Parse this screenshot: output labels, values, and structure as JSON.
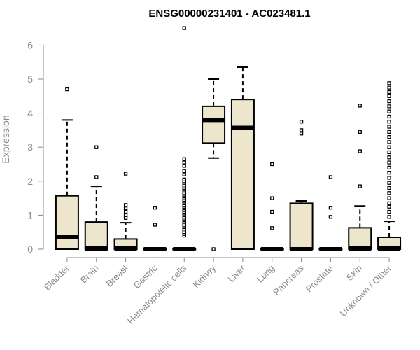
{
  "chart_data": {
    "type": "boxplot",
    "title": "ENSG00000231401 - AC023481.1",
    "ylabel": "Expression",
    "xlabel": "",
    "ylim": [
      0,
      6.5
    ],
    "yticks": [
      0,
      1,
      2,
      3,
      4,
      5,
      6
    ],
    "box_color": "#ede6cc",
    "grid": false,
    "categories": [
      "Bladder",
      "Brain",
      "Breast",
      "Gastric",
      "Hematopoietic cells",
      "Kidney",
      "Liver",
      "Lung",
      "Pancreas",
      "Prostate",
      "Skin",
      "Unknown / Other"
    ],
    "boxes": [
      {
        "q1": 0,
        "median": 0.37,
        "q3": 1.57,
        "whisker_low": 0,
        "whisker_high": 3.8,
        "outliers": [
          4.7
        ]
      },
      {
        "q1": 0,
        "median": 0.02,
        "q3": 0.8,
        "whisker_low": 0,
        "whisker_high": 1.85,
        "outliers": [
          2.12,
          3.0
        ]
      },
      {
        "q1": 0,
        "median": 0.02,
        "q3": 0.3,
        "whisker_low": 0,
        "whisker_high": 0.78,
        "outliers": [
          0.92,
          1.0,
          1.1,
          1.2,
          1.3,
          2.22
        ]
      },
      {
        "q1": 0,
        "median": 0,
        "q3": 0,
        "whisker_low": 0,
        "whisker_high": 0,
        "outliers": [
          0.72,
          1.22
        ]
      },
      {
        "q1": 0,
        "median": 0,
        "q3": 0,
        "whisker_low": 0,
        "whisker_high": 0,
        "outliers": [
          0.4,
          0.45,
          0.5,
          0.55,
          0.6,
          0.65,
          0.7,
          0.75,
          0.8,
          0.85,
          0.9,
          0.95,
          1.0,
          1.05,
          1.1,
          1.15,
          1.2,
          1.25,
          1.3,
          1.35,
          1.4,
          1.45,
          1.5,
          1.55,
          1.6,
          1.65,
          1.7,
          1.75,
          1.8,
          1.85,
          1.9,
          1.95,
          2.0,
          2.05,
          2.2,
          2.3,
          2.45,
          2.55,
          2.65,
          6.5
        ]
      },
      {
        "q1": 3.12,
        "median": 3.8,
        "q3": 4.2,
        "whisker_low": 2.68,
        "whisker_high": 5.0,
        "outliers": [
          0
        ]
      },
      {
        "q1": 0,
        "median": 3.57,
        "q3": 4.4,
        "whisker_low": 0,
        "whisker_high": 5.35,
        "outliers": []
      },
      {
        "q1": 0,
        "median": 0,
        "q3": 0,
        "whisker_low": 0,
        "whisker_high": 0,
        "outliers": [
          0.62,
          1.1,
          1.5,
          2.5
        ]
      },
      {
        "q1": 0,
        "median": 0,
        "q3": 1.35,
        "whisker_low": 0,
        "whisker_high": 1.42,
        "outliers": [
          3.4,
          3.5,
          3.75
        ]
      },
      {
        "q1": 0,
        "median": 0,
        "q3": 0,
        "whisker_low": 0,
        "whisker_high": 0,
        "outliers": [
          0.95,
          1.22,
          2.12
        ]
      },
      {
        "q1": 0,
        "median": 0.02,
        "q3": 0.63,
        "whisker_low": 0,
        "whisker_high": 1.27,
        "outliers": [
          1.85,
          2.88,
          3.45,
          4.22
        ]
      },
      {
        "q1": 0,
        "median": 0.02,
        "q3": 0.35,
        "whisker_low": 0,
        "whisker_high": 0.82,
        "outliers": [
          0.95,
          1.1,
          1.25,
          1.35,
          1.5,
          1.65,
          1.8,
          1.95,
          2.1,
          2.25,
          2.4,
          2.55,
          2.7,
          2.85,
          3.0,
          3.15,
          3.3,
          3.45,
          3.6,
          3.75,
          3.9,
          4.05,
          4.2,
          4.35,
          4.5,
          4.62,
          4.75,
          4.88
        ]
      }
    ]
  }
}
